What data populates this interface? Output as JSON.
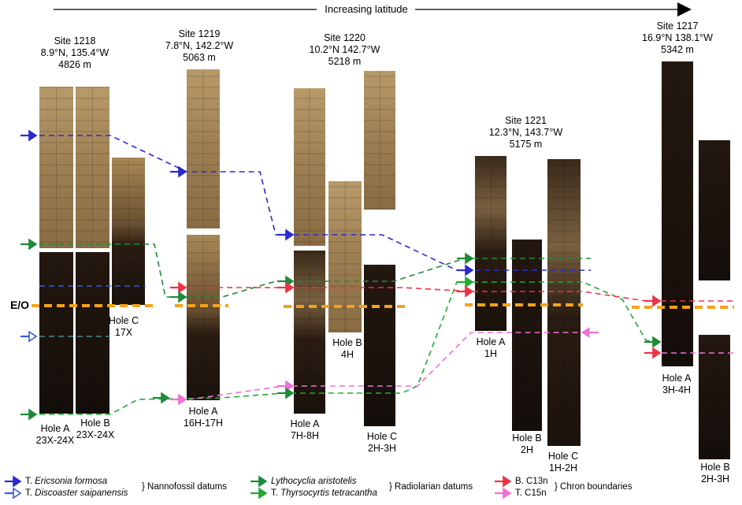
{
  "header": {
    "axis_label": "Increasing latitude"
  },
  "eo_label": "E/O",
  "sites": [
    {
      "name": "Site 1218",
      "coords": "8.9°N, 135.4°W",
      "depth": "4826 m"
    },
    {
      "name": "Site 1219",
      "coords": "7.8°N, 142.2°W",
      "depth": "5063 m"
    },
    {
      "name": "Site 1220",
      "coords": "10.2°N  142.7°W",
      "depth": "5218 m"
    },
    {
      "name": "Site 1221",
      "coords": "12.3°N, 143.7°W",
      "depth": "5175 m"
    },
    {
      "name": "Site 1217",
      "coords": "16.9°N  138.1°W",
      "depth": "5342 m"
    }
  ],
  "holes": {
    "h1218a": {
      "name": "Hole A",
      "cores": "23X-24X"
    },
    "h1218b": {
      "name": "Hole B",
      "cores": "23X-24X"
    },
    "h1218c": {
      "name": "Hole C",
      "cores": "17X"
    },
    "h1219a": {
      "name": "Hole A",
      "cores": "16H-17H"
    },
    "h1220a": {
      "name": "Hole A",
      "cores": "7H-8H"
    },
    "h1220b": {
      "name": "Hole B",
      "cores": "4H"
    },
    "h1220c": {
      "name": "Hole C",
      "cores": "2H-3H"
    },
    "h1221a": {
      "name": "Hole A",
      "cores": "1H"
    },
    "h1221b": {
      "name": "Hole B",
      "cores": "2H"
    },
    "h1221c": {
      "name": "Hole C",
      "cores": "1H-2H"
    },
    "h1217a": {
      "name": "Hole A",
      "cores": "3H-4H"
    },
    "h1217b": {
      "name": "Hole B",
      "cores": "2H-3H"
    }
  },
  "legend": {
    "nanno": {
      "item1_prefix": "T. ",
      "item1_name": "Ericsonia formosa",
      "item2_prefix": "T. ",
      "item2_name": "Discoaster saipanensis",
      "group": "} Nannofossil datums"
    },
    "radio": {
      "item1_name": "Lythocyclia aristotelis",
      "item2_prefix": "T. ",
      "item2_name": "Thyrsocyrtis tetracantha",
      "group": "} Radiolarian datums"
    },
    "chron": {
      "item1": "B. C13n",
      "item2": "T. C15n",
      "group": "} Chron boundaries"
    }
  },
  "colors": {
    "ericsonia": "#2a2ad0",
    "discoaster": "#3a5ad8",
    "lythocyclia": "#1f8a3a",
    "thyrsocyrtis": "#22aa33",
    "c13n": "#ee3344",
    "c15n": "#f070d8",
    "eo": "#f5a21a",
    "core_light": "#a8885a",
    "core_dark": "#1e1410"
  }
}
